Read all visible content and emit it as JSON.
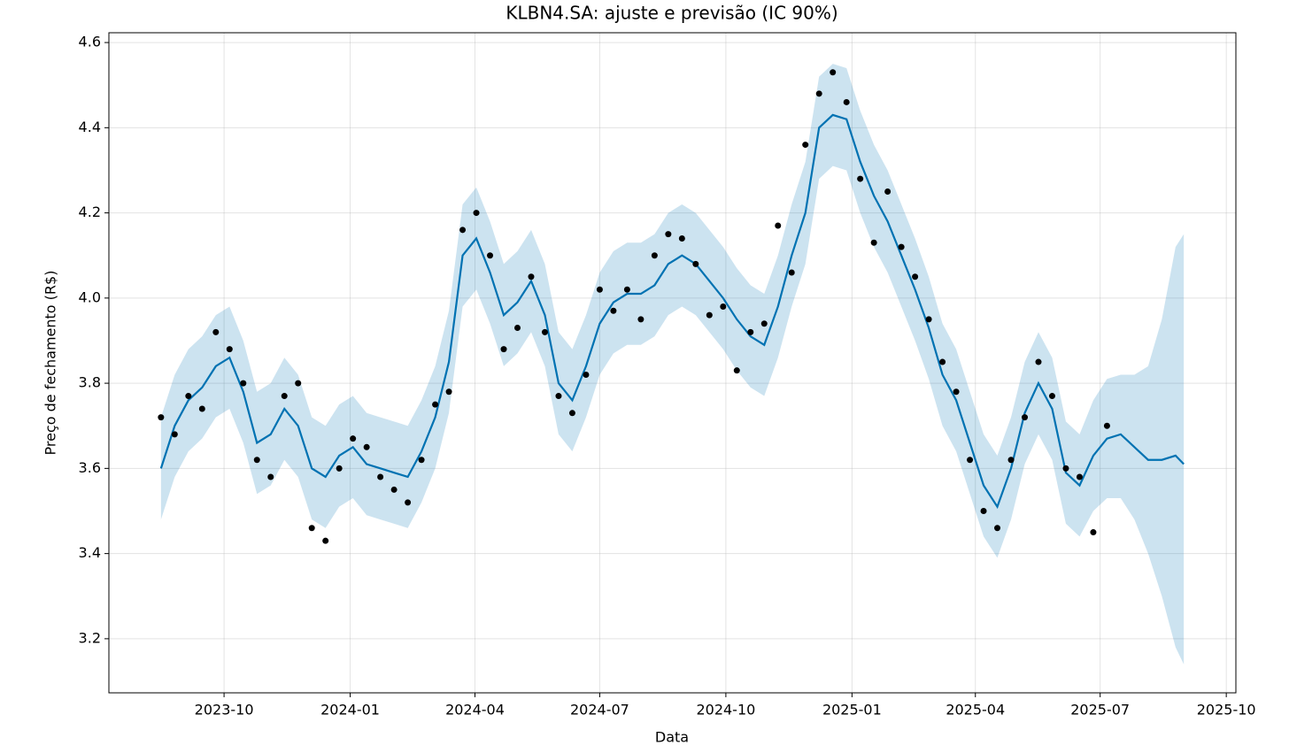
{
  "chart_data": {
    "type": "forecast",
    "title": "KLBN4.SA: ajuste e previsão (IC 90%)",
    "x_label": "Data",
    "y_label": "Preço de fechamento (R$)",
    "x": [
      "2023-08-16",
      "2023-08-26",
      "2023-09-05",
      "2023-09-15",
      "2023-09-25",
      "2023-10-05",
      "2023-10-15",
      "2023-10-25",
      "2023-11-04",
      "2023-11-14",
      "2023-11-24",
      "2023-12-04",
      "2023-12-14",
      "2023-12-24",
      "2024-01-03",
      "2024-01-13",
      "2024-01-23",
      "2024-02-02",
      "2024-02-12",
      "2024-02-22",
      "2024-03-03",
      "2024-03-13",
      "2024-03-23",
      "2024-04-02",
      "2024-04-12",
      "2024-04-22",
      "2024-05-02",
      "2024-05-12",
      "2024-05-22",
      "2024-06-01",
      "2024-06-11",
      "2024-06-21",
      "2024-07-01",
      "2024-07-11",
      "2024-07-21",
      "2024-07-31",
      "2024-08-10",
      "2024-08-20",
      "2024-08-30",
      "2024-09-09",
      "2024-09-19",
      "2024-09-29",
      "2024-10-09",
      "2024-10-19",
      "2024-10-29",
      "2024-11-08",
      "2024-11-18",
      "2024-11-28",
      "2024-12-08",
      "2024-12-18",
      "2024-12-28",
      "2025-01-07",
      "2025-01-17",
      "2025-01-27",
      "2025-02-06",
      "2025-02-16",
      "2025-02-26",
      "2025-03-08",
      "2025-03-18",
      "2025-03-28",
      "2025-04-07",
      "2025-04-17",
      "2025-04-27",
      "2025-05-07",
      "2025-05-17",
      "2025-05-27",
      "2025-06-06",
      "2025-06-16",
      "2025-06-26",
      "2025-07-06",
      "2025-07-16",
      "2025-07-26",
      "2025-08-05",
      "2025-08-15",
      "2025-08-25",
      "2025-08-31"
    ],
    "observed": {
      "color": "#000000",
      "values": [
        3.72,
        3.68,
        3.77,
        3.74,
        3.92,
        3.88,
        3.8,
        3.62,
        3.58,
        3.77,
        3.8,
        3.46,
        3.43,
        3.6,
        3.67,
        3.65,
        3.58,
        3.55,
        3.52,
        3.62,
        3.75,
        3.78,
        4.16,
        4.2,
        4.1,
        3.88,
        3.93,
        4.05,
        3.92,
        3.77,
        3.73,
        3.82,
        4.02,
        3.97,
        4.02,
        3.95,
        4.1,
        4.15,
        4.14,
        4.08,
        3.96,
        3.98,
        3.83,
        3.92,
        3.94,
        4.17,
        4.06,
        4.36,
        4.48,
        4.53,
        4.46,
        4.28,
        4.13,
        4.25,
        4.12,
        4.05,
        3.95,
        3.85,
        3.78,
        3.62,
        3.5,
        3.46,
        3.62,
        3.72,
        3.85,
        3.77,
        3.6,
        3.58,
        3.45,
        3.7,
        null,
        null,
        null,
        null,
        null,
        null
      ]
    },
    "fit": {
      "color": "#0072b2",
      "values": [
        3.6,
        3.7,
        3.76,
        3.79,
        3.84,
        3.86,
        3.78,
        3.66,
        3.68,
        3.74,
        3.7,
        3.6,
        3.58,
        3.63,
        3.65,
        3.61,
        3.6,
        3.59,
        3.58,
        3.64,
        3.72,
        3.85,
        4.1,
        4.14,
        4.06,
        3.96,
        3.99,
        4.04,
        3.96,
        3.8,
        3.76,
        3.84,
        3.94,
        3.99,
        4.01,
        4.01,
        4.03,
        4.08,
        4.1,
        4.08,
        4.04,
        4.0,
        3.95,
        3.91,
        3.89,
        3.98,
        4.1,
        4.2,
        4.4,
        4.43,
        4.42,
        4.32,
        4.24,
        4.18,
        4.1,
        4.02,
        3.93,
        3.82,
        3.76,
        3.66,
        3.56,
        3.51,
        3.6,
        3.73,
        3.8,
        3.74,
        3.59,
        3.56,
        3.63,
        3.67,
        3.68,
        3.65,
        3.62,
        3.62,
        3.63,
        3.61
      ]
    },
    "interval": {
      "color": "#0072b2",
      "lower": [
        3.48,
        3.58,
        3.64,
        3.67,
        3.72,
        3.74,
        3.66,
        3.54,
        3.56,
        3.62,
        3.58,
        3.48,
        3.46,
        3.51,
        3.53,
        3.49,
        3.48,
        3.47,
        3.46,
        3.52,
        3.6,
        3.73,
        3.98,
        4.02,
        3.94,
        3.84,
        3.87,
        3.92,
        3.84,
        3.68,
        3.64,
        3.72,
        3.82,
        3.87,
        3.89,
        3.89,
        3.91,
        3.96,
        3.98,
        3.96,
        3.92,
        3.88,
        3.83,
        3.79,
        3.77,
        3.86,
        3.98,
        4.08,
        4.28,
        4.31,
        4.3,
        4.2,
        4.12,
        4.06,
        3.98,
        3.9,
        3.81,
        3.7,
        3.64,
        3.54,
        3.44,
        3.39,
        3.48,
        3.61,
        3.68,
        3.62,
        3.47,
        3.44,
        3.5,
        3.53,
        3.53,
        3.48,
        3.4,
        3.3,
        3.18,
        3.14
      ],
      "upper": [
        3.72,
        3.82,
        3.88,
        3.91,
        3.96,
        3.98,
        3.9,
        3.78,
        3.8,
        3.86,
        3.82,
        3.72,
        3.7,
        3.75,
        3.77,
        3.73,
        3.72,
        3.71,
        3.7,
        3.76,
        3.84,
        3.97,
        4.22,
        4.26,
        4.18,
        4.08,
        4.11,
        4.16,
        4.08,
        3.92,
        3.88,
        3.96,
        4.06,
        4.11,
        4.13,
        4.13,
        4.15,
        4.2,
        4.22,
        4.2,
        4.16,
        4.12,
        4.07,
        4.03,
        4.01,
        4.1,
        4.22,
        4.32,
        4.52,
        4.55,
        4.54,
        4.44,
        4.36,
        4.3,
        4.22,
        4.14,
        4.05,
        3.94,
        3.88,
        3.78,
        3.68,
        3.63,
        3.72,
        3.85,
        3.92,
        3.86,
        3.71,
        3.68,
        3.76,
        3.81,
        3.82,
        3.82,
        3.84,
        3.95,
        4.12,
        4.15
      ]
    },
    "xlim": [
      "2023-07-09",
      "2025-10-08"
    ],
    "ylim": [
      3.073,
      4.623
    ],
    "xticks": [
      {
        "value": "2023-10-01",
        "label": "2023-10"
      },
      {
        "value": "2024-01-01",
        "label": "2024-01"
      },
      {
        "value": "2024-04-01",
        "label": "2024-04"
      },
      {
        "value": "2024-07-01",
        "label": "2024-07"
      },
      {
        "value": "2024-10-01",
        "label": "2024-10"
      },
      {
        "value": "2025-01-01",
        "label": "2025-01"
      },
      {
        "value": "2025-04-01",
        "label": "2025-04"
      },
      {
        "value": "2025-07-01",
        "label": "2025-07"
      },
      {
        "value": "2025-10-01",
        "label": "2025-10"
      }
    ],
    "yticks": [
      3.2,
      3.4,
      3.6,
      3.8,
      {
        "value": 4,
        "label": "4.0"
      },
      4.2,
      4.4,
      4.6
    ],
    "grid": true
  }
}
